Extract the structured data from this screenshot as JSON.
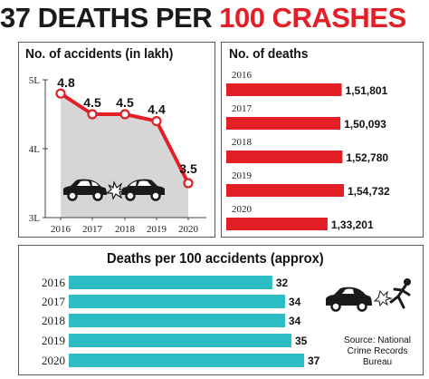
{
  "headline": {
    "part1": "37 DEATHS PER ",
    "part2": "100 CRASHES"
  },
  "accidents_panel": {
    "title": "No. of accidents (in lakh)"
  },
  "deaths_panel": {
    "title": "No. of deaths"
  },
  "per100_panel": {
    "title": "Deaths per 100 accidents (approx)"
  },
  "source": "Source: National\nCrime Records\nBureau",
  "icons": {
    "accidents_panel": "car-collision-icon",
    "per100_panel": "car-hitting-pedestrian-icon"
  },
  "colors": {
    "red": "#e31e24",
    "teal": "#2cbcc4",
    "grey_area": "#d6d6d6"
  },
  "chart_data": [
    {
      "type": "line",
      "title": "No. of accidents (in lakh)",
      "x": [
        "2016",
        "2017",
        "2018",
        "2019",
        "2020"
      ],
      "values": [
        4.8,
        4.5,
        4.5,
        4.4,
        3.5
      ],
      "value_labels": [
        "4.8",
        "4.5",
        "4.5",
        "4.4",
        "3.5"
      ],
      "yticks": [
        5,
        4,
        3
      ],
      "ytick_labels": [
        "5L",
        "4L",
        "3L"
      ],
      "ylim": [
        3,
        5
      ],
      "grid": false,
      "color": "#e31e24"
    },
    {
      "type": "bar",
      "orientation": "horizontal",
      "title": "No. of deaths",
      "categories": [
        "2016",
        "2017",
        "2018",
        "2019",
        "2020"
      ],
      "values": [
        151801,
        150093,
        152780,
        154732,
        133201
      ],
      "value_labels": [
        "1,51,801",
        "1,50,093",
        "1,52,780",
        "1,54,732",
        "1,33,201"
      ],
      "color": "#e31e24"
    },
    {
      "type": "bar",
      "orientation": "horizontal",
      "title": "Deaths per 100 accidents (approx)",
      "categories": [
        "2016",
        "2017",
        "2018",
        "2019",
        "2020"
      ],
      "values": [
        32,
        34,
        34,
        35,
        37
      ],
      "value_labels": [
        "32",
        "34",
        "34",
        "35",
        "37"
      ],
      "color": "#2cbcc4"
    }
  ]
}
